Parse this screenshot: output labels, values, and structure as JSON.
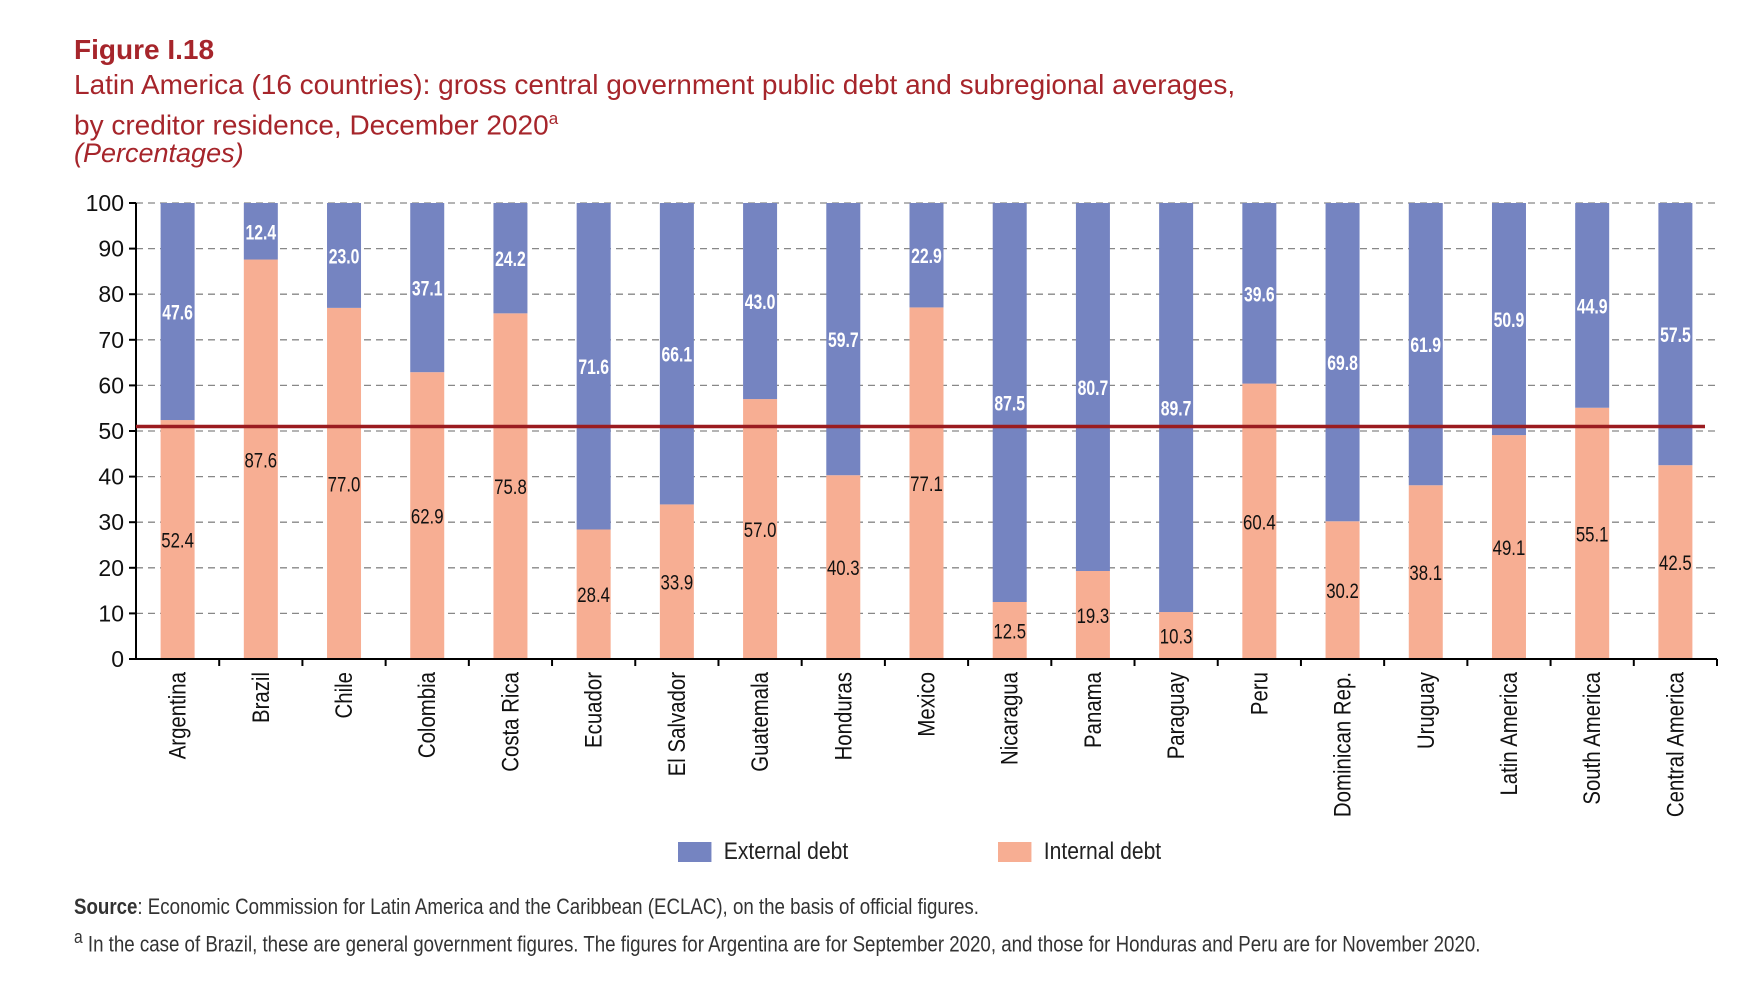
{
  "figure_label": "Figure I.18",
  "title_line1": "Latin America (16 countries): gross central government public debt and subregional averages,",
  "title_line2": "by creditor residence, December 2020",
  "title_sup": "a",
  "units": "(Percentages)",
  "source_label": "Source",
  "source_text": ": Economic Commission for Latin America and the Caribbean (ECLAC), on the basis of official figures.",
  "note_sup": "a",
  "note_text": " In the case of Brazil, these are general government figures. The figures for Argentina are for September 2020, and those for Honduras and Peru are for November 2020.",
  "colors": {
    "external": "#7584c1",
    "internal": "#f7ae93",
    "reference": "#9b1c20",
    "title": "#a6252b"
  },
  "chart_data": {
    "type": "bar",
    "stacked": true,
    "categories": [
      "Argentina",
      "Brazil",
      "Chile",
      "Colombia",
      "Costa Rica",
      "Ecuador",
      "El Salvador",
      "Guatemala",
      "Honduras",
      "Mexico",
      "Nicaragua",
      "Panama",
      "Paraguay",
      "Peru",
      "Dominican Rep.",
      "Uruguay",
      "Latin America",
      "South America",
      "Central America"
    ],
    "series": [
      {
        "name": "Internal debt",
        "values": [
          52.4,
          87.6,
          77.0,
          62.9,
          75.8,
          28.4,
          33.9,
          57.0,
          40.3,
          77.1,
          12.5,
          19.3,
          10.3,
          60.4,
          30.2,
          38.1,
          49.1,
          55.1,
          42.5
        ]
      },
      {
        "name": "External debt",
        "values": [
          47.6,
          12.4,
          23.0,
          37.1,
          24.2,
          71.6,
          66.1,
          43.0,
          59.7,
          22.9,
          87.5,
          80.7,
          89.7,
          39.6,
          69.8,
          61.9,
          50.9,
          44.9,
          57.5
        ]
      }
    ],
    "legend": [
      "External debt",
      "Internal debt"
    ],
    "legend_position": "bottom",
    "reference_line": 51,
    "ylim": [
      0,
      100
    ],
    "yticks": [
      "0",
      "10",
      "20",
      "30",
      "40",
      "50",
      "60",
      "70",
      "80",
      "90",
      "100"
    ],
    "grid": true
  }
}
